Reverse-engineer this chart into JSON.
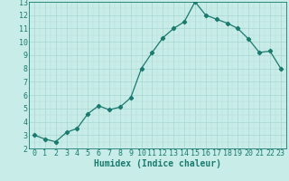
{
  "x": [
    0,
    1,
    2,
    3,
    4,
    5,
    6,
    7,
    8,
    9,
    10,
    11,
    12,
    13,
    14,
    15,
    16,
    17,
    18,
    19,
    20,
    21,
    22,
    23
  ],
  "y": [
    3.0,
    2.7,
    2.5,
    3.2,
    3.5,
    4.6,
    5.2,
    4.9,
    5.1,
    5.8,
    8.0,
    9.2,
    10.3,
    11.0,
    11.5,
    13.0,
    12.0,
    11.7,
    11.4,
    11.0,
    10.2,
    9.2,
    9.3,
    8.0
  ],
  "line_color": "#1a7a6e",
  "marker": "D",
  "marker_size": 2.2,
  "bg_color": "#c8ede9",
  "grid_major_color": "#b0d8d4",
  "grid_minor_color": "#c0e2de",
  "xlabel": "Humidex (Indice chaleur)",
  "ylim": [
    2,
    13
  ],
  "xlim": [
    -0.5,
    23.5
  ],
  "yticks": [
    2,
    3,
    4,
    5,
    6,
    7,
    8,
    9,
    10,
    11,
    12,
    13
  ],
  "xticks": [
    0,
    1,
    2,
    3,
    4,
    5,
    6,
    7,
    8,
    9,
    10,
    11,
    12,
    13,
    14,
    15,
    16,
    17,
    18,
    19,
    20,
    21,
    22,
    23
  ],
  "tick_color": "#1a7a6e",
  "label_color": "#1a7a6e",
  "font_size": 6.0,
  "xlabel_font_size": 7.0
}
